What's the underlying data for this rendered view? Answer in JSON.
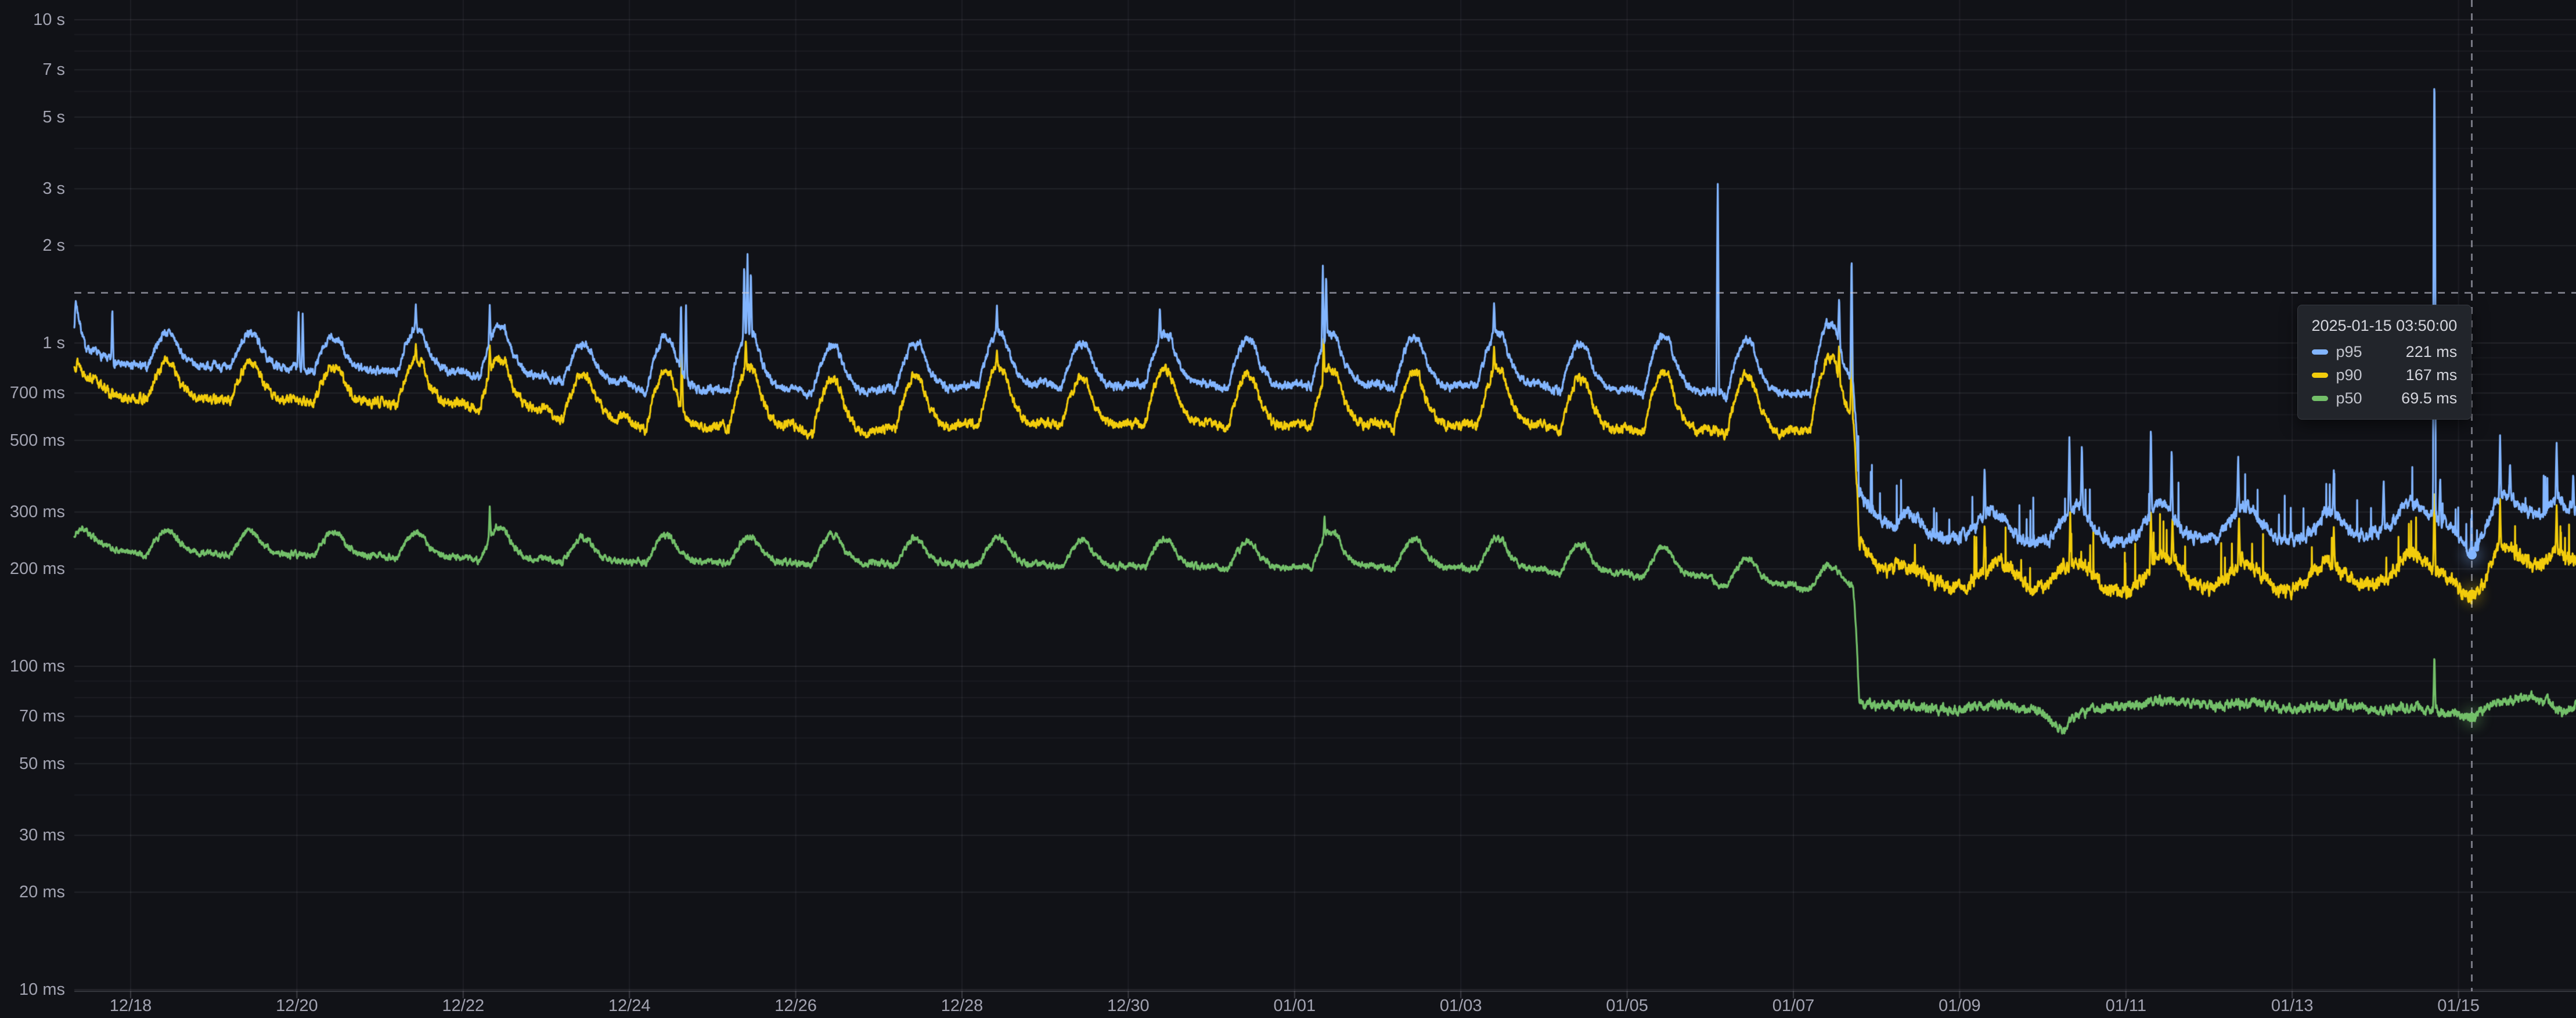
{
  "accent_colors": {
    "background": "#111217",
    "grid": "#ccccdc",
    "tick_text": "#b7b9c4",
    "crosshair": "#9fa1ad",
    "tooltip_bg": "#22252b"
  },
  "y_axis": {
    "ticks": [
      {
        "label": "10 s",
        "ms": 10000
      },
      {
        "label": "7 s",
        "ms": 7000
      },
      {
        "label": "5 s",
        "ms": 5000
      },
      {
        "label": "3 s",
        "ms": 3000
      },
      {
        "label": "2 s",
        "ms": 2000
      },
      {
        "label": "1 s",
        "ms": 1000
      },
      {
        "label": "700 ms",
        "ms": 700
      },
      {
        "label": "500 ms",
        "ms": 500
      },
      {
        "label": "300 ms",
        "ms": 300
      },
      {
        "label": "200 ms",
        "ms": 200
      },
      {
        "label": "100 ms",
        "ms": 100
      },
      {
        "label": "70 ms",
        "ms": 70
      },
      {
        "label": "50 ms",
        "ms": 50
      },
      {
        "label": "30 ms",
        "ms": 30
      },
      {
        "label": "20 ms",
        "ms": 20
      },
      {
        "label": "10 ms",
        "ms": 10
      }
    ]
  },
  "x_axis": {
    "ticks": [
      {
        "label": "12/18",
        "day": 0
      },
      {
        "label": "12/20",
        "day": 2
      },
      {
        "label": "12/22",
        "day": 4
      },
      {
        "label": "12/24",
        "day": 6
      },
      {
        "label": "12/26",
        "day": 8
      },
      {
        "label": "12/28",
        "day": 10
      },
      {
        "label": "12/30",
        "day": 12
      },
      {
        "label": "01/01",
        "day": 14
      },
      {
        "label": "01/03",
        "day": 16
      },
      {
        "label": "01/05",
        "day": 18
      },
      {
        "label": "01/07",
        "day": 20
      },
      {
        "label": "01/09",
        "day": 22
      },
      {
        "label": "01/11",
        "day": 24
      },
      {
        "label": "01/13",
        "day": 26
      },
      {
        "label": "01/15",
        "day": 28
      }
    ]
  },
  "hover": {
    "time_label": "2025-01-15 03:50:00",
    "day": 28.16,
    "cursor_value_ms": 1430,
    "rows": [
      {
        "name": "p95",
        "value_label": "221 ms",
        "value_ms": 221,
        "color": "#82B5FF"
      },
      {
        "name": "p90",
        "value_label": "167 ms",
        "value_ms": 167,
        "color": "#F2CC0C"
      },
      {
        "name": "p50",
        "value_label": "69.5 ms",
        "value_ms": 69.5,
        "color": "#73BF69"
      }
    ]
  },
  "chart_data": {
    "type": "line",
    "y_scale": "log10",
    "ylim_ms": [
      10,
      10000
    ],
    "x_unit": "days since 2024-12-18 00:00",
    "x_range_days": [
      -0.677,
      29.414
    ],
    "grid": "on",
    "legend": "tooltip-only",
    "daily_pattern_note": "values peak ~09:30 each day, low plateau overnight; all series step-drop at day 20.78 (2025-01-07 ~18:40)",
    "series": [
      {
        "name": "p50",
        "color": "#73BF69",
        "seed": 21,
        "noise_pct": 2.2,
        "micro_spikes": false,
        "drop_day": 20.78,
        "lead_points": [
          [
            -0.677,
            252
          ],
          [
            -0.6,
            268
          ],
          [
            -0.5,
            258
          ],
          [
            -0.35,
            240
          ],
          [
            -0.2,
            230
          ],
          [
            -0.08,
            225
          ]
        ],
        "daily": {
          "low": [
            222,
            220,
            218,
            216,
            212,
            210,
            208,
            208,
            206,
            205,
            205,
            202,
            202,
            200,
            202,
            200,
            198,
            193,
            188,
            178,
            172
          ],
          "peak": [
            265,
            262,
            260,
            258,
            270,
            250,
            255,
            252,
            255,
            248,
            252,
            245,
            248,
            243,
            262,
            247,
            250,
            238,
            232,
            215,
            205
          ]
        },
        "spikes": [
          [
            4.32,
            315
          ],
          [
            14.36,
            295
          ],
          [
            27.71,
            110
          ]
        ],
        "post_points": [
          [
            20.79,
            77
          ],
          [
            21.0,
            75
          ],
          [
            21.3,
            76
          ],
          [
            21.6,
            74
          ],
          [
            21.9,
            73
          ],
          [
            22.2,
            75
          ],
          [
            22.5,
            76
          ],
          [
            22.8,
            74
          ],
          [
            23.0,
            72
          ],
          [
            23.15,
            66
          ],
          [
            23.25,
            63
          ],
          [
            23.4,
            70
          ],
          [
            23.6,
            74
          ],
          [
            23.9,
            75
          ],
          [
            24.2,
            76
          ],
          [
            24.5,
            79
          ],
          [
            24.8,
            77
          ],
          [
            25.1,
            75
          ],
          [
            25.4,
            77
          ],
          [
            25.7,
            76
          ],
          [
            26.0,
            73
          ],
          [
            26.3,
            75
          ],
          [
            26.6,
            76
          ],
          [
            26.9,
            74
          ],
          [
            27.1,
            73
          ],
          [
            27.25,
            74
          ],
          [
            27.5,
            75
          ],
          [
            27.8,
            72
          ],
          [
            28.0,
            71
          ],
          [
            28.16,
            69.5
          ],
          [
            28.4,
            76
          ],
          [
            28.65,
            79
          ],
          [
            28.9,
            80
          ],
          [
            29.1,
            77
          ],
          [
            29.25,
            71
          ],
          [
            29.414,
            76
          ]
        ]
      },
      {
        "name": "p90",
        "color": "#F2CC0C",
        "seed": 13,
        "noise_pct": 3.2,
        "micro_spikes": true,
        "drop_day": 20.78,
        "lead_points": [
          [
            -0.677,
            840
          ],
          [
            -0.64,
            880
          ],
          [
            -0.55,
            800
          ],
          [
            -0.4,
            760
          ],
          [
            -0.25,
            700
          ],
          [
            -0.1,
            672
          ]
        ],
        "daily": {
          "low": [
            665,
            660,
            650,
            640,
            620,
            580,
            535,
            545,
            520,
            540,
            555,
            550,
            555,
            545,
            550,
            545,
            550,
            530,
            525,
            520,
            530
          ],
          "peak": [
            880,
            870,
            845,
            890,
            905,
            800,
            820,
            850,
            775,
            790,
            845,
            780,
            835,
            800,
            830,
            810,
            840,
            780,
            815,
            800,
            900
          ]
        },
        "spikes": [
          [
            3.43,
            1000
          ],
          [
            4.32,
            990
          ],
          [
            6.63,
            980
          ],
          [
            7.4,
            1020
          ],
          [
            10.42,
            950
          ],
          [
            14.35,
            1050
          ],
          [
            16.4,
            980
          ],
          [
            20.55,
            1000
          ],
          [
            20.7,
            1150
          ],
          [
            22.3,
            280
          ],
          [
            23.33,
            300
          ],
          [
            24.3,
            310
          ],
          [
            24.56,
            290
          ],
          [
            25.36,
            295
          ],
          [
            26.5,
            270
          ],
          [
            27.71,
            360
          ],
          [
            28.5,
            330
          ],
          [
            29.18,
            320
          ]
        ],
        "post_points": [
          [
            20.79,
            240
          ],
          [
            20.95,
            215
          ],
          [
            21.1,
            196
          ],
          [
            21.3,
            208
          ],
          [
            21.5,
            200
          ],
          [
            21.7,
            182
          ],
          [
            21.9,
            174
          ],
          [
            22.1,
            178
          ],
          [
            22.3,
            195
          ],
          [
            22.45,
            215
          ],
          [
            22.65,
            196
          ],
          [
            22.85,
            172
          ],
          [
            23.05,
            176
          ],
          [
            23.25,
            205
          ],
          [
            23.45,
            215
          ],
          [
            23.65,
            186
          ],
          [
            23.85,
            168
          ],
          [
            24.05,
            172
          ],
          [
            24.25,
            192
          ],
          [
            24.42,
            222
          ],
          [
            24.6,
            210
          ],
          [
            24.8,
            178
          ],
          [
            25.0,
            172
          ],
          [
            25.2,
            186
          ],
          [
            25.4,
            215
          ],
          [
            25.6,
            196
          ],
          [
            25.8,
            172
          ],
          [
            26.0,
            170
          ],
          [
            26.2,
            184
          ],
          [
            26.4,
            212
          ],
          [
            26.6,
            196
          ],
          [
            26.8,
            175
          ],
          [
            27.0,
            180
          ],
          [
            27.2,
            196
          ],
          [
            27.4,
            225
          ],
          [
            27.6,
            210
          ],
          [
            27.75,
            196
          ],
          [
            27.9,
            186
          ],
          [
            28.05,
            170
          ],
          [
            28.16,
            167
          ],
          [
            28.3,
            178
          ],
          [
            28.45,
            228
          ],
          [
            28.6,
            235
          ],
          [
            28.75,
            215
          ],
          [
            28.9,
            205
          ],
          [
            29.05,
            210
          ],
          [
            29.2,
            228
          ],
          [
            29.3,
            215
          ],
          [
            29.414,
            212
          ]
        ]
      },
      {
        "name": "p95",
        "color": "#82B5FF",
        "seed": 7,
        "noise_pct": 2.8,
        "micro_spikes": true,
        "drop_day": 20.78,
        "lead_points": [
          [
            -0.677,
            1140
          ],
          [
            -0.66,
            1350
          ],
          [
            -0.62,
            1180
          ],
          [
            -0.55,
            980
          ],
          [
            -0.45,
            940
          ],
          [
            -0.3,
            900
          ],
          [
            -0.15,
            865
          ],
          [
            -0.05,
            850
          ]
        ],
        "daily": {
          "low": [
            840,
            830,
            815,
            805,
            785,
            755,
            700,
            710,
            695,
            715,
            735,
            725,
            735,
            725,
            735,
            725,
            735,
            705,
            695,
            685,
            680
          ],
          "peak": [
            1080,
            1075,
            1040,
            1110,
            1130,
            1000,
            1045,
            1090,
            985,
            1010,
            1085,
            1000,
            1075,
            1030,
            1070,
            1045,
            1085,
            1000,
            1055,
            1030,
            1160
          ]
        },
        "spikes": [
          [
            -0.22,
            1300
          ],
          [
            2.02,
            1280
          ],
          [
            2.07,
            1250
          ],
          [
            3.43,
            1330
          ],
          [
            4.32,
            1325
          ],
          [
            6.62,
            1360
          ],
          [
            6.68,
            1340
          ],
          [
            7.38,
            1780
          ],
          [
            7.42,
            1900
          ],
          [
            7.46,
            1700
          ],
          [
            10.42,
            1310
          ],
          [
            12.38,
            1300
          ],
          [
            14.34,
            1760
          ],
          [
            14.38,
            1650
          ],
          [
            16.4,
            1340
          ],
          [
            19.09,
            3180
          ],
          [
            20.55,
            1400
          ],
          [
            20.7,
            1900
          ],
          [
            22.3,
            420
          ],
          [
            23.32,
            520
          ],
          [
            23.47,
            495
          ],
          [
            24.3,
            560
          ],
          [
            24.55,
            480
          ],
          [
            25.35,
            455
          ],
          [
            26.5,
            405
          ],
          [
            27.1,
            380
          ],
          [
            27.71,
            6950
          ],
          [
            27.78,
            390
          ],
          [
            28.5,
            520
          ],
          [
            28.62,
            430
          ],
          [
            29.18,
            500
          ],
          [
            29.38,
            400
          ]
        ],
        "post_points": [
          [
            20.79,
            345
          ],
          [
            20.9,
            315
          ],
          [
            21.05,
            285
          ],
          [
            21.2,
            268
          ],
          [
            21.35,
            300
          ],
          [
            21.5,
            285
          ],
          [
            21.65,
            258
          ],
          [
            21.8,
            246
          ],
          [
            22.0,
            252
          ],
          [
            22.2,
            270
          ],
          [
            22.35,
            305
          ],
          [
            22.5,
            288
          ],
          [
            22.7,
            250
          ],
          [
            22.9,
            243
          ],
          [
            23.1,
            250
          ],
          [
            23.3,
            300
          ],
          [
            23.42,
            320
          ],
          [
            23.6,
            272
          ],
          [
            23.8,
            240
          ],
          [
            24.0,
            244
          ],
          [
            24.2,
            268
          ],
          [
            24.38,
            322
          ],
          [
            24.5,
            310
          ],
          [
            24.7,
            258
          ],
          [
            24.9,
            248
          ],
          [
            25.1,
            252
          ],
          [
            25.3,
            295
          ],
          [
            25.45,
            315
          ],
          [
            25.65,
            270
          ],
          [
            25.85,
            248
          ],
          [
            26.05,
            244
          ],
          [
            26.25,
            262
          ],
          [
            26.42,
            305
          ],
          [
            26.6,
            280
          ],
          [
            26.8,
            252
          ],
          [
            27.0,
            258
          ],
          [
            27.2,
            280
          ],
          [
            27.42,
            328
          ],
          [
            27.6,
            300
          ],
          [
            27.75,
            285
          ],
          [
            27.9,
            272
          ],
          [
            28.05,
            240
          ],
          [
            28.16,
            221
          ],
          [
            28.3,
            255
          ],
          [
            28.45,
            330
          ],
          [
            28.6,
            340
          ],
          [
            28.75,
            310
          ],
          [
            28.9,
            295
          ],
          [
            29.05,
            302
          ],
          [
            29.2,
            330
          ],
          [
            29.3,
            312
          ],
          [
            29.414,
            308
          ]
        ]
      }
    ]
  }
}
